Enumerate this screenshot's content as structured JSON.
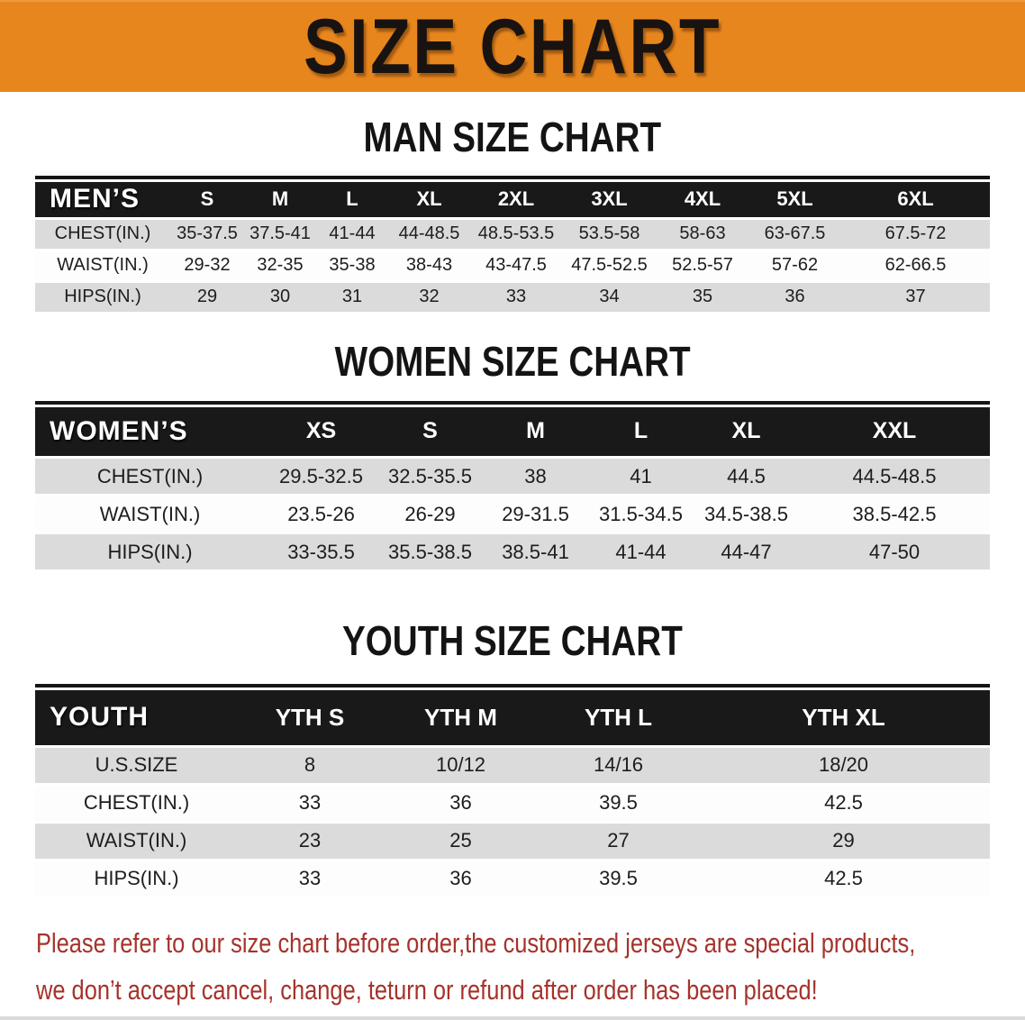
{
  "banner": {
    "title": "SIZE CHART",
    "bg_color": "#E8861E",
    "text_color": "#181310"
  },
  "sections": [
    {
      "heading": "MAN SIZE CHART",
      "table": {
        "header_label": "MEN’S",
        "columns": [
          "S",
          "M",
          "L",
          "XL",
          "2XL",
          "3XL",
          "4XL",
          "5XL",
          "6XL"
        ],
        "rows": [
          {
            "label": "CHEST(IN.)",
            "values": [
              "35-37.5",
              "37.5-41",
              "41-44",
              "44-48.5",
              "48.5-53.5",
              "53.5-58",
              "58-63",
              "63-67.5",
              "67.5-72"
            ]
          },
          {
            "label": "WAIST(IN.)",
            "values": [
              "29-32",
              "32-35",
              "35-38",
              "38-43",
              "43-47.5",
              "47.5-52.5",
              "52.5-57",
              "57-62",
              "62-66.5"
            ]
          },
          {
            "label": "HIPS(IN.)",
            "values": [
              "29",
              "30",
              "31",
              "32",
              "33",
              "34",
              "35",
              "36",
              "37"
            ]
          }
        ]
      }
    },
    {
      "heading": "WOMEN SIZE CHART",
      "table": {
        "header_label": "WOMEN’S",
        "columns": [
          "XS",
          "S",
          "M",
          "L",
          "XL",
          "XXL"
        ],
        "rows": [
          {
            "label": "CHEST(IN.)",
            "values": [
              "29.5-32.5",
              "32.5-35.5",
              "38",
              "41",
              "44.5",
              "44.5-48.5"
            ]
          },
          {
            "label": "WAIST(IN.)",
            "values": [
              "23.5-26",
              "26-29",
              "29-31.5",
              "31.5-34.5",
              "34.5-38.5",
              "38.5-42.5"
            ]
          },
          {
            "label": "HIPS(IN.)",
            "values": [
              "33-35.5",
              "35.5-38.5",
              "38.5-41",
              "41-44",
              "44-47",
              "47-50"
            ]
          }
        ]
      }
    },
    {
      "heading": "YOUTH SIZE CHART",
      "table": {
        "header_label": "YOUTH",
        "columns": [
          "YTH S",
          "YTH M",
          "YTH L",
          "YTH XL"
        ],
        "rows": [
          {
            "label": "U.S.SIZE",
            "values": [
              "8",
              "10/12",
              "14/16",
              "18/20"
            ]
          },
          {
            "label": "CHEST(IN.)",
            "values": [
              "33",
              "36",
              "39.5",
              "42.5"
            ]
          },
          {
            "label": "WAIST(IN.)",
            "values": [
              "23",
              "25",
              "27",
              "29"
            ]
          },
          {
            "label": "HIPS(IN.)",
            "values": [
              "33",
              "36",
              "39.5",
              "42.5"
            ]
          }
        ]
      }
    }
  ],
  "footer": {
    "line1": "Please refer to our size chart before order,the customized jerseys are special products,",
    "line2": "we don’t accept cancel, change, teturn or refund after order has been placed!",
    "text_color": "#A5332B"
  },
  "colors": {
    "banner_bg": "#E8861E",
    "table_header_bg": "#191919",
    "row_stripe_bg": "#DBDBDB",
    "row_plain_bg": "#FDFDFD"
  }
}
